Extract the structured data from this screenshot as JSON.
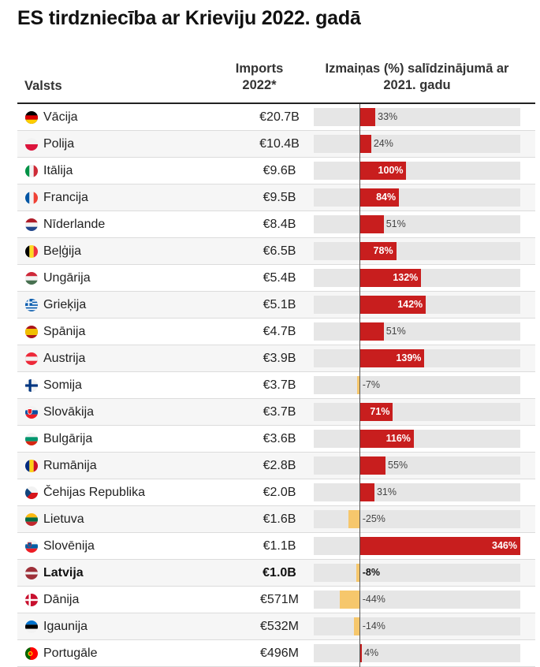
{
  "title": "ES tirdzniecība ar Krieviju 2022. gadā",
  "headers": {
    "country": "Valsts",
    "imports_line1": "Imports",
    "imports_line2": "2022*",
    "change_line1": "Izmaiņas (%) salīdzinājumā ar",
    "change_line2": "2021. gadu"
  },
  "colors": {
    "increase": "#c81e1e",
    "decrease": "#f6c76c",
    "track": "#e6e6e6",
    "row_alt": "#f6f6f6"
  },
  "chart_data": {
    "type": "table",
    "columns": [
      "Valsts",
      "Imports 2022*",
      "Izmaiņas (%) salīdzinājumā ar 2021. gadu"
    ],
    "x_range_percent": [
      -100,
      346
    ],
    "rows": [
      {
        "country": "Vācija",
        "flag": "germany-flag-icon",
        "imports": "€20.7B",
        "change": 33,
        "change_label": "33%"
      },
      {
        "country": "Polija",
        "flag": "poland-flag-icon",
        "imports": "€10.4B",
        "change": 24,
        "change_label": "24%"
      },
      {
        "country": "Itālija",
        "flag": "italy-flag-icon",
        "imports": "€9.6B",
        "change": 100,
        "change_label": "100%"
      },
      {
        "country": "Francija",
        "flag": "france-flag-icon",
        "imports": "€9.5B",
        "change": 84,
        "change_label": "84%"
      },
      {
        "country": "Nīderlande",
        "flag": "netherlands-flag-icon",
        "imports": "€8.4B",
        "change": 51,
        "change_label": "51%"
      },
      {
        "country": "Beļģija",
        "flag": "belgium-flag-icon",
        "imports": "€6.5B",
        "change": 78,
        "change_label": "78%"
      },
      {
        "country": "Ungārija",
        "flag": "hungary-flag-icon",
        "imports": "€5.4B",
        "change": 132,
        "change_label": "132%"
      },
      {
        "country": "Grieķija",
        "flag": "greece-flag-icon",
        "imports": "€5.1B",
        "change": 142,
        "change_label": "142%"
      },
      {
        "country": "Spānija",
        "flag": "spain-flag-icon",
        "imports": "€4.7B",
        "change": 51,
        "change_label": "51%"
      },
      {
        "country": "Austrija",
        "flag": "austria-flag-icon",
        "imports": "€3.9B",
        "change": 139,
        "change_label": "139%"
      },
      {
        "country": "Somija",
        "flag": "finland-flag-icon",
        "imports": "€3.7B",
        "change": -7,
        "change_label": "-7%"
      },
      {
        "country": "Slovākija",
        "flag": "slovakia-flag-icon",
        "imports": "€3.7B",
        "change": 71,
        "change_label": "71%"
      },
      {
        "country": "Bulgārija",
        "flag": "bulgaria-flag-icon",
        "imports": "€3.6B",
        "change": 116,
        "change_label": "116%"
      },
      {
        "country": "Rumānija",
        "flag": "romania-flag-icon",
        "imports": "€2.8B",
        "change": 55,
        "change_label": "55%"
      },
      {
        "country": "Čehijas Republika",
        "flag": "czechia-flag-icon",
        "imports": "€2.0B",
        "change": 31,
        "change_label": "31%"
      },
      {
        "country": "Lietuva",
        "flag": "lithuania-flag-icon",
        "imports": "€1.6B",
        "change": -25,
        "change_label": "-25%"
      },
      {
        "country": "Slovēnija",
        "flag": "slovenia-flag-icon",
        "imports": "€1.1B",
        "change": 346,
        "change_label": "346%"
      },
      {
        "country": "Latvija",
        "flag": "latvia-flag-icon",
        "imports": "€1.0B",
        "change": -8,
        "change_label": "-8%",
        "highlight": true
      },
      {
        "country": "Dānija",
        "flag": "denmark-flag-icon",
        "imports": "€571M",
        "change": -44,
        "change_label": "-44%"
      },
      {
        "country": "Igaunija",
        "flag": "estonia-flag-icon",
        "imports": "€532M",
        "change": -14,
        "change_label": "-14%"
      },
      {
        "country": "Portugāle",
        "flag": "portugal-flag-icon",
        "imports": "€496M",
        "change": 4,
        "change_label": "4%"
      }
    ]
  }
}
